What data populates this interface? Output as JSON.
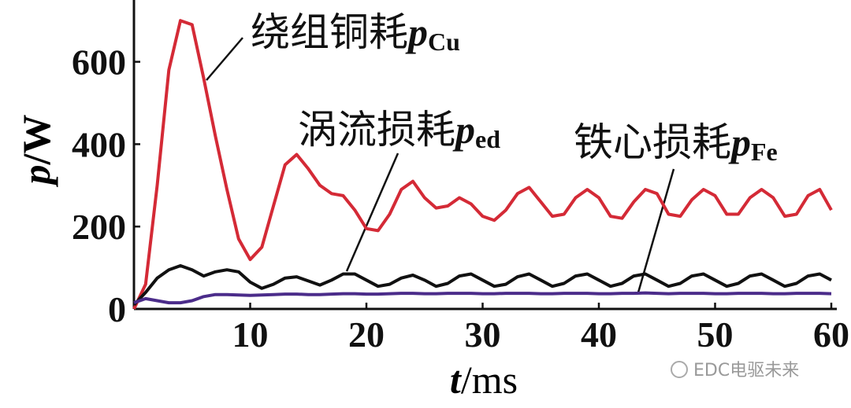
{
  "chart_data": {
    "type": "line",
    "x_label": {
      "symbol": "t",
      "unit": "/ms"
    },
    "y_label": {
      "symbol": "p",
      "unit": "/W"
    },
    "x": [
      0,
      1,
      2,
      3,
      4,
      5,
      6,
      7,
      8,
      9,
      10,
      11,
      12,
      13,
      14,
      15,
      16,
      17,
      18,
      19,
      20,
      21,
      22,
      23,
      24,
      25,
      26,
      27,
      28,
      29,
      30,
      31,
      32,
      33,
      34,
      35,
      36,
      37,
      38,
      39,
      40,
      41,
      42,
      43,
      44,
      45,
      46,
      47,
      48,
      49,
      50,
      51,
      52,
      53,
      54,
      55,
      56,
      57,
      58,
      59,
      60
    ],
    "xlim": [
      0,
      60
    ],
    "xticks": [
      10,
      20,
      30,
      40,
      50,
      60
    ],
    "ylim": [
      0,
      750
    ],
    "yticks": [
      0,
      200,
      400,
      600
    ],
    "series": [
      {
        "name": "pCu",
        "color": "#d42a36",
        "values": [
          0,
          60,
          300,
          580,
          700,
          690,
          560,
          420,
          290,
          170,
          120,
          150,
          250,
          350,
          375,
          340,
          300,
          280,
          275,
          240,
          195,
          190,
          230,
          290,
          310,
          270,
          245,
          250,
          270,
          255,
          225,
          215,
          240,
          280,
          295,
          260,
          225,
          230,
          270,
          290,
          270,
          225,
          220,
          260,
          290,
          280,
          230,
          225,
          265,
          290,
          275,
          230,
          230,
          270,
          290,
          270,
          225,
          230,
          275,
          290,
          240
        ]
      },
      {
        "name": "ped",
        "color": "#111111",
        "values": [
          10,
          40,
          75,
          95,
          105,
          95,
          80,
          90,
          95,
          90,
          65,
          50,
          60,
          75,
          78,
          68,
          58,
          70,
          85,
          85,
          70,
          55,
          60,
          75,
          82,
          70,
          55,
          62,
          80,
          85,
          70,
          55,
          60,
          78,
          85,
          70,
          55,
          62,
          80,
          85,
          70,
          55,
          62,
          80,
          85,
          70,
          55,
          62,
          80,
          85,
          70,
          55,
          62,
          80,
          85,
          70,
          55,
          62,
          80,
          85,
          70
        ]
      },
      {
        "name": "pFe",
        "color": "#4b2c8a",
        "values": [
          15,
          25,
          20,
          15,
          15,
          20,
          30,
          35,
          35,
          34,
          33,
          34,
          35,
          36,
          36,
          35,
          35,
          36,
          37,
          37,
          36,
          36,
          37,
          38,
          38,
          37,
          37,
          38,
          38,
          38,
          37,
          37,
          38,
          38,
          38,
          37,
          37,
          38,
          38,
          38,
          37,
          37,
          38,
          38,
          39,
          38,
          37,
          38,
          38,
          38,
          37,
          37,
          38,
          38,
          38,
          37,
          37,
          38,
          38,
          38,
          37
        ]
      }
    ],
    "annotations": [
      {
        "text": "绕组铜耗",
        "symbol": "p",
        "subscript": "Cu"
      },
      {
        "text": "涡流损耗",
        "symbol": "p",
        "subscript": "ed"
      },
      {
        "text": "铁心损耗",
        "symbol": "p",
        "subscript": "Fe"
      }
    ],
    "watermark": "EDC电驱未来"
  }
}
